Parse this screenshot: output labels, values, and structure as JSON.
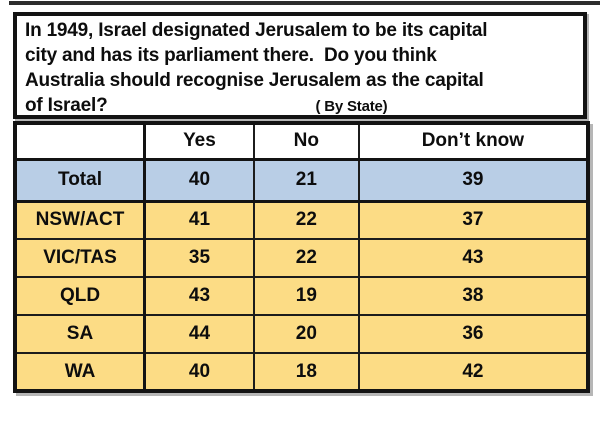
{
  "header": {
    "question_lines": [
      "In 1949, Israel designated Jerusalem to be its capital",
      "city and has its parliament there.  Do you think",
      "Australia should recognise Jerusalem as the capital",
      "of Israel?"
    ],
    "by_state_label": "( By State)"
  },
  "table": {
    "columns": [
      "",
      "Yes",
      "No",
      "Don’t know"
    ],
    "rows": [
      {
        "label": "Total",
        "values": [
          "40",
          "21",
          "39"
        ],
        "row_type": "total"
      },
      {
        "label": "NSW/ACT",
        "values": [
          "41",
          "22",
          "37"
        ],
        "row_type": "state"
      },
      {
        "label": "VIC/TAS",
        "values": [
          "35",
          "22",
          "43"
        ],
        "row_type": "state"
      },
      {
        "label": "QLD",
        "values": [
          "43",
          "19",
          "38"
        ],
        "row_type": "state"
      },
      {
        "label": "SA",
        "values": [
          "44",
          "20",
          "36"
        ],
        "row_type": "state"
      },
      {
        "label": "WA",
        "values": [
          "40",
          "18",
          "42"
        ],
        "row_type": "state"
      }
    ]
  },
  "colors": {
    "border": "#131313",
    "total_row_bg": "#b9cee6",
    "state_row_bg": "#fcdc85",
    "header_row_bg": "#ffffff",
    "text": "#0d0d0d"
  },
  "chart_data": {
    "type": "table",
    "title": "In 1949, Israel designated Jerusalem to be its capital city and has its parliament there.  Do you think Australia should recognise Jerusalem as the capital of Israel? ( By State)",
    "columns": [
      "Yes",
      "No",
      "Don’t know"
    ],
    "categories": [
      "Total",
      "NSW/ACT",
      "VIC/TAS",
      "QLD",
      "SA",
      "WA"
    ],
    "series": [
      {
        "name": "Yes",
        "values": [
          40,
          41,
          35,
          43,
          44,
          40
        ]
      },
      {
        "name": "No",
        "values": [
          21,
          22,
          22,
          19,
          20,
          18
        ]
      },
      {
        "name": "Don’t know",
        "values": [
          39,
          37,
          43,
          38,
          36,
          42
        ]
      }
    ]
  }
}
